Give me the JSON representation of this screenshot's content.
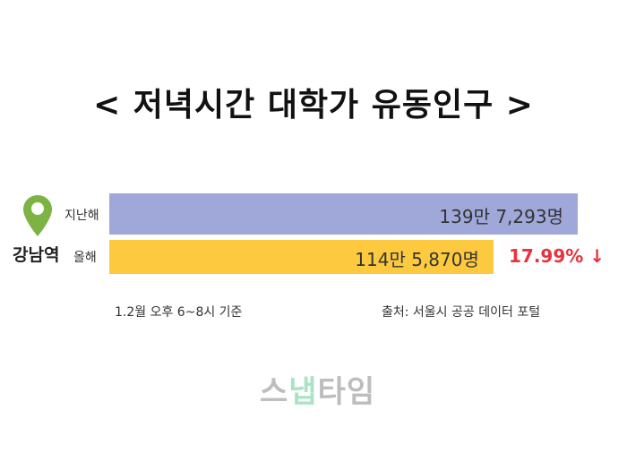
{
  "title": "< 저녁시간 대학가 유동인구 >",
  "station": "강남역",
  "icons": {
    "pin": "map-pin-icon",
    "pin_color": "#7cb342"
  },
  "chart_data": {
    "type": "bar",
    "orientation": "horizontal",
    "categories": [
      "지난해",
      "올해"
    ],
    "values": [
      1397293,
      1145870
    ],
    "value_labels": [
      "139만 7,293명",
      "114만 5,870명"
    ],
    "colors": [
      "#9fa8d8",
      "#fdc93f"
    ],
    "change_label": "17.99% ↓",
    "change_color": "#e8323c"
  },
  "footnote_left": "1.2월 오후 6~8시 기준",
  "footnote_right": "출처: 서울시 공공 데이터 포털",
  "logo": {
    "part1": "스",
    "part2": "냅",
    "part3": "타임"
  }
}
